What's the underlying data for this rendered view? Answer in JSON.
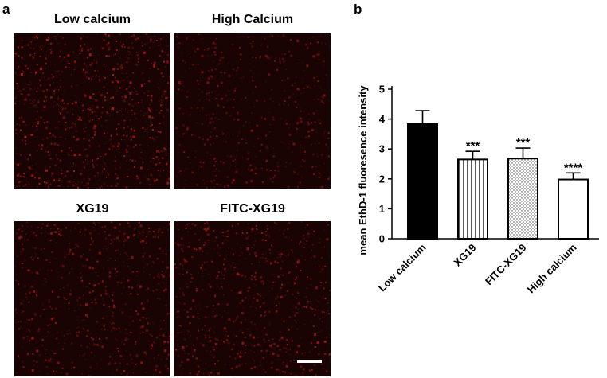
{
  "panels": {
    "a_label": "a",
    "b_label": "b"
  },
  "images": [
    {
      "title": "Low calcium",
      "intensity": 0.95
    },
    {
      "title": "High Calcium",
      "intensity": 0.55
    },
    {
      "title": "XG19",
      "intensity": 0.7
    },
    {
      "title": "FITC-XG19",
      "intensity": 0.75
    }
  ],
  "colors": {
    "micrograph_bg": "#1a0403",
    "signal": "#c41a14",
    "scale_bar": "#ffffff"
  },
  "chart_data": {
    "type": "bar",
    "ylabel": "mean EthD-1 fluoresence intensity",
    "xlabel": "",
    "ylim": [
      0,
      5
    ],
    "yticks": [
      0,
      1,
      2,
      3,
      4,
      5
    ],
    "categories": [
      "Low calcium",
      "XG19",
      "FITC-XG19",
      "High calcium"
    ],
    "values": [
      3.83,
      2.65,
      2.68,
      1.98
    ],
    "errors": [
      0.45,
      0.27,
      0.35,
      0.22
    ],
    "significance": [
      "",
      "***",
      "***",
      "****"
    ],
    "patterns": [
      "solid-black",
      "vertical-lines",
      "dots",
      "white"
    ]
  }
}
